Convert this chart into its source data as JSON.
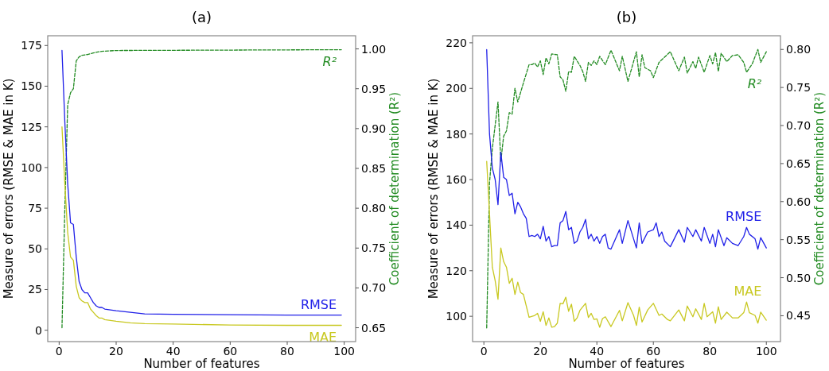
{
  "chart_data": [
    {
      "type": "line",
      "title": "(a)",
      "xlabel": "Number of features",
      "ylabel": "Measure of errors (RMSE & MAE in K)",
      "y2label": "Coefficient of determination (R²)",
      "xlim": [
        -4,
        104
      ],
      "xticks": [
        0,
        20,
        40,
        60,
        80,
        100
      ],
      "ylim": [
        -7,
        181
      ],
      "yticks": [
        0,
        25,
        50,
        75,
        100,
        125,
        150,
        175
      ],
      "y2lim": [
        0.6326,
        1.0165
      ],
      "y2ticks": [
        {
          "value": 0.65,
          "label": "0.65"
        },
        {
          "value": 0.7,
          "label": "0.70"
        },
        {
          "value": 0.75,
          "label": "0.75"
        },
        {
          "value": 0.8,
          "label": "0.80"
        },
        {
          "value": 0.85,
          "label": "0.85"
        },
        {
          "value": 0.9,
          "label": "0.90"
        },
        {
          "value": 0.95,
          "label": "0.95"
        },
        {
          "value": 1,
          "label": "1.00"
        }
      ],
      "grid": false,
      "series": [
        {
          "name": "RMSE",
          "color": "#2020e8",
          "line_style": "solid",
          "x": [
            1,
            2,
            3,
            4,
            5,
            6,
            7,
            8,
            9,
            10,
            11,
            12,
            13,
            14,
            15,
            16,
            18,
            20,
            25,
            30,
            40,
            60,
            80,
            99
          ],
          "values": [
            172,
            128,
            90,
            66,
            65,
            45,
            30,
            25,
            23,
            23,
            20,
            17,
            15,
            14,
            14,
            13,
            12.5,
            12,
            11,
            10,
            9.8,
            9.5,
            9.3,
            9.3
          ]
        },
        {
          "name": "MAE",
          "color": "#c8c820",
          "line_style": "solid",
          "x": [
            1,
            2,
            3,
            4,
            5,
            6,
            7,
            8,
            9,
            10,
            11,
            12,
            13,
            14,
            15,
            16,
            18,
            20,
            25,
            30,
            40,
            60,
            80,
            99
          ],
          "values": [
            125,
            90,
            60,
            45,
            43,
            27,
            20,
            18,
            17,
            17,
            13,
            11,
            9,
            7.5,
            7.5,
            6.5,
            6,
            5.5,
            4.5,
            4,
            3.8,
            3.2,
            3,
            3
          ]
        },
        {
          "name": "R²",
          "color": "#228b22",
          "line_style": "dashed",
          "axis": "y2",
          "x": [
            1,
            2,
            3,
            4,
            5,
            6,
            7,
            8,
            10,
            12,
            15,
            20,
            99
          ],
          "values": [
            0.65,
            0.8,
            0.93,
            0.945,
            0.95,
            0.985,
            0.99,
            0.992,
            0.993,
            0.995,
            0.997,
            0.998,
            0.999
          ]
        }
      ]
    },
    {
      "type": "line",
      "title": "(b)",
      "xlabel": "Number of features",
      "ylabel": "Measure of errors (RMSE & MAE in K)",
      "y2label": "Coefficient of determination (R²)",
      "xlim": [
        -4,
        105
      ],
      "xticks": [
        0,
        20,
        40,
        60,
        80,
        100
      ],
      "ylim": [
        88.9,
        223.1
      ],
      "yticks": [
        100,
        120,
        140,
        160,
        180,
        200,
        220
      ],
      "y2lim": [
        0.416,
        0.818
      ],
      "y2ticks": [
        {
          "value": 0.45,
          "label": "0.45"
        },
        {
          "value": 0.5,
          "label": "0.50"
        },
        {
          "value": 0.55,
          "label": "0.55"
        },
        {
          "value": 0.6,
          "label": "0.60"
        },
        {
          "value": 0.65,
          "label": "0.65"
        },
        {
          "value": 0.7,
          "label": "0.70"
        },
        {
          "value": 0.75,
          "label": "0.75"
        },
        {
          "value": 0.8,
          "label": "0.80"
        }
      ],
      "grid": false,
      "series": [
        {
          "name": "RMSE",
          "color": "#2020e8",
          "line_style": "solid",
          "x": [
            1,
            2,
            3,
            4,
            5,
            6,
            7,
            8,
            9,
            10,
            11,
            12,
            13,
            14,
            15,
            16,
            17,
            18,
            19,
            20,
            21,
            22,
            23,
            24,
            25,
            26,
            27,
            28,
            29,
            30,
            31,
            32,
            33,
            34,
            35,
            36,
            37,
            38,
            39,
            40,
            41,
            42,
            43,
            44,
            45,
            48,
            49,
            51,
            54,
            55,
            56,
            58,
            60,
            61,
            62,
            63,
            64,
            66,
            69,
            71,
            72,
            74,
            75,
            77,
            78,
            80,
            81,
            82,
            83,
            85,
            86,
            88,
            90,
            92,
            93,
            94,
            96,
            97,
            98,
            100
          ],
          "values": [
            217,
            180,
            165,
            160,
            149,
            172,
            161,
            160,
            153,
            154,
            145,
            150,
            148,
            145,
            143,
            135,
            135.5,
            135,
            136,
            134,
            139.5,
            133,
            135,
            130.5,
            131,
            131,
            141,
            142,
            146,
            138,
            139,
            132,
            133,
            137,
            139,
            142.5,
            134,
            136,
            133,
            135,
            132,
            135,
            136,
            130,
            129.5,
            138,
            132,
            142,
            130,
            141,
            132,
            137,
            138,
            141,
            135,
            137,
            133,
            130.5,
            138,
            132.5,
            139,
            135,
            138,
            133,
            139,
            132,
            136,
            130.5,
            138,
            131,
            134.5,
            132,
            131,
            135,
            139,
            136,
            134,
            129.5,
            134.5,
            130
          ]
        },
        {
          "name": "MAE",
          "color": "#c8c820",
          "line_style": "solid",
          "x": [
            1,
            3,
            4,
            5,
            6,
            7,
            8,
            9,
            10,
            11,
            12,
            13,
            14,
            16,
            18,
            19,
            20,
            21,
            22,
            23,
            24,
            25,
            26,
            27,
            28,
            29,
            30,
            31,
            32,
            33,
            34,
            36,
            37,
            38,
            39,
            40,
            41,
            42,
            43,
            45,
            48,
            49,
            51,
            53,
            54,
            55,
            56,
            58,
            60,
            62,
            63,
            65,
            66,
            69,
            71,
            72,
            74,
            75,
            77,
            78,
            79,
            81,
            82,
            83,
            84,
            86,
            88,
            90,
            92,
            93,
            94,
            96,
            97,
            98,
            100
          ],
          "values": [
            168,
            121.5,
            115.6,
            107.5,
            130,
            124,
            121.5,
            114.5,
            116.7,
            109.6,
            115,
            110.4,
            109.6,
            99.6,
            100.4,
            101.3,
            97.8,
            102,
            96,
            99.3,
            95.2,
            95.5,
            97,
            105.7,
            105.5,
            108.4,
            102.2,
            105.3,
            97.8,
            99.3,
            102.6,
            105.7,
            99.5,
            101.3,
            98.6,
            98.9,
            95.2,
            99,
            99.8,
            95.5,
            102.6,
            98,
            106,
            100.4,
            96,
            104,
            97.5,
            102.8,
            105.7,
            100.4,
            101,
            98.6,
            98,
            102.8,
            98,
            104.5,
            99.8,
            103.3,
            98.6,
            105.7,
            99.8,
            102,
            97,
            104.2,
            98.6,
            101.8,
            99.3,
            99.3,
            101.6,
            106.3,
            101.6,
            100.4,
            97,
            101.8,
            98.3
          ]
        },
        {
          "name": "R²",
          "color": "#228b22",
          "line_style": "dashed",
          "axis": "y2",
          "x": [
            1,
            2,
            3,
            5,
            6,
            7,
            8,
            9,
            10,
            11,
            12,
            14,
            16,
            17,
            18,
            19,
            20,
            21,
            22,
            23,
            24,
            26,
            27,
            28,
            29,
            30,
            31,
            32,
            34,
            35,
            36,
            37,
            38,
            39,
            40,
            41,
            43,
            45,
            48,
            49,
            51,
            54,
            55,
            56,
            57,
            59,
            60,
            62,
            64,
            66,
            69,
            71,
            72,
            74,
            75,
            76,
            78,
            80,
            81,
            82,
            83,
            84,
            86,
            88,
            90,
            92,
            93,
            95,
            97,
            98,
            100
          ],
          "values": [
            0.434,
            0.625,
            0.67,
            0.731,
            0.653,
            0.686,
            0.693,
            0.717,
            0.715,
            0.749,
            0.731,
            0.756,
            0.78,
            0.78,
            0.782,
            0.777,
            0.785,
            0.767,
            0.789,
            0.781,
            0.794,
            0.793,
            0.764,
            0.76,
            0.745,
            0.771,
            0.77,
            0.791,
            0.779,
            0.771,
            0.758,
            0.783,
            0.779,
            0.785,
            0.78,
            0.791,
            0.78,
            0.799,
            0.772,
            0.791,
            0.758,
            0.797,
            0.764,
            0.793,
            0.776,
            0.772,
            0.763,
            0.783,
            0.79,
            0.797,
            0.772,
            0.79,
            0.769,
            0.784,
            0.775,
            0.79,
            0.77,
            0.792,
            0.781,
            0.796,
            0.771,
            0.795,
            0.784,
            0.792,
            0.793,
            0.783,
            0.77,
            0.781,
            0.8,
            0.783,
            0.797
          ]
        }
      ]
    }
  ]
}
